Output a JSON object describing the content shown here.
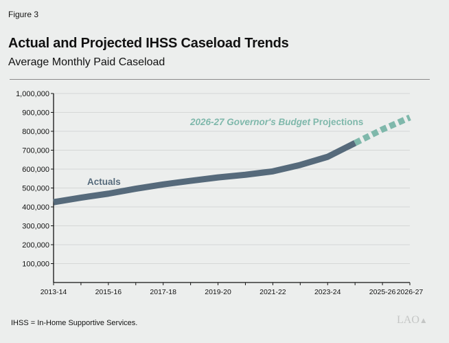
{
  "figure_label": "Figure 3",
  "footnote": "IHSS = In-Home Supportive Services.",
  "logo": "LAO",
  "colors": {
    "background": "#eceeed",
    "actuals": "#566a7b",
    "projections": "#7fb8ab",
    "grid": "#d5d7d6"
  },
  "chart_data": {
    "type": "line",
    "title": "Actual and Projected IHSS Caseload Trends",
    "subtitle": "Average Monthly Paid Caseload",
    "xlabel": "",
    "ylabel": "",
    "ylim": [
      0,
      1000000
    ],
    "grid": true,
    "yticks": [
      100000,
      200000,
      300000,
      400000,
      500000,
      600000,
      700000,
      800000,
      900000,
      1000000
    ],
    "ytick_labels": [
      "100,000",
      "200,000",
      "300,000",
      "400,000",
      "500,000",
      "600,000",
      "700,000",
      "800,000",
      "900,000",
      "1,000,000"
    ],
    "categories": [
      "2013-14",
      "2014-15",
      "2015-16",
      "2016-17",
      "2017-18",
      "2018-19",
      "2019-20",
      "2020-21",
      "2021-22",
      "2022-23",
      "2023-24",
      "2024-25",
      "2025-26",
      "2026-27"
    ],
    "xtick_labels": [
      "2013-14",
      "2015-16",
      "2017-18",
      "2019-20",
      "2021-22",
      "2023-24",
      "2025-26",
      "2026-27"
    ],
    "series": [
      {
        "name": "Actuals",
        "style": "solid",
        "x": [
          "2013-14",
          "2014-15",
          "2015-16",
          "2016-17",
          "2017-18",
          "2018-19",
          "2019-20",
          "2020-21",
          "2021-22",
          "2022-23",
          "2023-24",
          "2024-25"
        ],
        "values": [
          425000,
          449000,
          470000,
          496000,
          519000,
          538000,
          556000,
          570000,
          588000,
          622000,
          665000,
          738000
        ]
      },
      {
        "name": "2026-27 Governor's Budget Projections",
        "style": "dashed",
        "x": [
          "2024-25",
          "2025-26",
          "2026-27"
        ],
        "values": [
          738000,
          810000,
          873000
        ]
      }
    ],
    "annotations": {
      "actuals": "Actuals",
      "projections_italic": "2026-27 Governor's Budget",
      "projections_rest": " Projections"
    }
  }
}
